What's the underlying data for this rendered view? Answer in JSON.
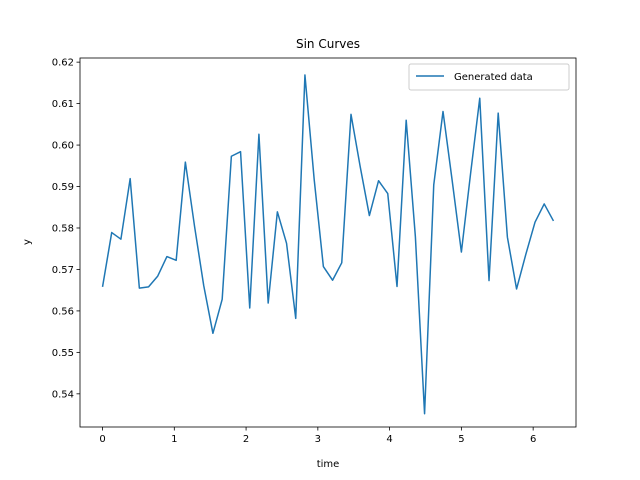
{
  "chart_data": {
    "type": "line",
    "title": "Sin Curves",
    "xlabel": "time",
    "ylabel": "y",
    "xlim": [
      -0.314,
      6.597
    ],
    "ylim": [
      0.532,
      0.621
    ],
    "xticks": [
      0,
      1,
      2,
      3,
      4,
      5,
      6
    ],
    "yticks": [
      0.54,
      0.55,
      0.56,
      0.57,
      0.58,
      0.59,
      0.6,
      0.61,
      0.62
    ],
    "grid": false,
    "legend": {
      "position": "top-right"
    },
    "series": [
      {
        "name": "Generated data",
        "color": "#1f77b4",
        "x": [
          0.0,
          0.128,
          0.256,
          0.385,
          0.513,
          0.641,
          0.769,
          0.897,
          1.026,
          1.154,
          1.282,
          1.41,
          1.538,
          1.667,
          1.795,
          1.923,
          2.051,
          2.179,
          2.308,
          2.436,
          2.564,
          2.692,
          2.82,
          2.949,
          3.077,
          3.205,
          3.333,
          3.462,
          3.59,
          3.718,
          3.846,
          3.974,
          4.103,
          4.231,
          4.359,
          4.487,
          4.615,
          4.744,
          4.872,
          5.0,
          5.128,
          5.256,
          5.385,
          5.513,
          5.641,
          5.769,
          5.897,
          6.026,
          6.154,
          6.283
        ],
        "y": [
          0.5658,
          0.5789,
          0.5773,
          0.5919,
          0.5655,
          0.5658,
          0.5684,
          0.5731,
          0.5722,
          0.5959,
          0.5804,
          0.5661,
          0.5546,
          0.5628,
          0.5973,
          0.5984,
          0.5607,
          0.6026,
          0.5619,
          0.5839,
          0.5763,
          0.5582,
          0.6169,
          0.5917,
          0.5707,
          0.5674,
          0.5716,
          0.6074,
          0.5948,
          0.583,
          0.5914,
          0.5883,
          0.5659,
          0.606,
          0.5779,
          0.5352,
          0.5904,
          0.6081,
          0.5914,
          0.5742,
          0.5931,
          0.6113,
          0.5673,
          0.6077,
          0.5778,
          0.5653,
          0.5736,
          0.5814,
          0.5858,
          0.5817
        ]
      }
    ]
  }
}
